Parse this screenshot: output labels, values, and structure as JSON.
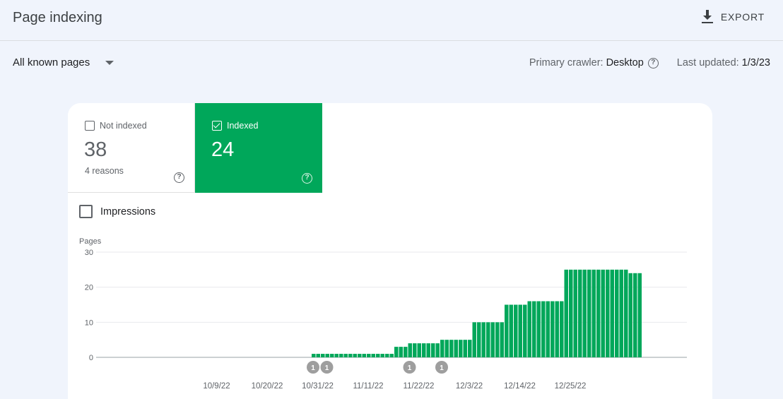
{
  "header": {
    "title": "Page indexing",
    "export_label": "EXPORT",
    "export_icon": "download-icon"
  },
  "filter": {
    "selected": "All known pages"
  },
  "meta": {
    "crawler_label": "Primary crawler:",
    "crawler_value": "Desktop",
    "updated_label": "Last updated:",
    "updated_value": "1/3/23"
  },
  "tiles": {
    "not_indexed": {
      "label": "Not indexed",
      "count": "38",
      "sub": "4 reasons"
    },
    "indexed": {
      "label": "Indexed",
      "count": "24"
    }
  },
  "impressions": {
    "label": "Impressions"
  },
  "colors": {
    "indexed": "#00a75a",
    "background": "#f0f4fc"
  },
  "chart_data": {
    "type": "bar",
    "ylabel": "Pages",
    "ylim": [
      0,
      30
    ],
    "yticks": [
      "0",
      "10",
      "20",
      "30"
    ],
    "x_start": "10/4/22",
    "x_end": "1/2/23",
    "xtick_labels": [
      {
        "label": "10/9/22",
        "index": 5
      },
      {
        "label": "10/20/22",
        "index": 16
      },
      {
        "label": "10/31/22",
        "index": 27
      },
      {
        "label": "11/11/22",
        "index": 38
      },
      {
        "label": "11/22/22",
        "index": 49
      },
      {
        "label": "12/3/22",
        "index": 60
      },
      {
        "label": "12/14/22",
        "index": 71
      },
      {
        "label": "12/25/22",
        "index": 82
      }
    ],
    "annotations": [
      {
        "label": "1",
        "index": 26
      },
      {
        "label": "1",
        "index": 29
      },
      {
        "label": "1",
        "index": 47
      },
      {
        "label": "1",
        "index": 54
      }
    ],
    "values": [
      0,
      0,
      0,
      0,
      0,
      0,
      0,
      0,
      0,
      0,
      0,
      0,
      0,
      0,
      0,
      0,
      0,
      0,
      0,
      0,
      0,
      0,
      0,
      0,
      0,
      0,
      1,
      1,
      1,
      1,
      1,
      1,
      1,
      1,
      1,
      1,
      1,
      1,
      1,
      1,
      1,
      1,
      1,
      1,
      3,
      3,
      3,
      4,
      4,
      4,
      4,
      4,
      4,
      4,
      5,
      5,
      5,
      5,
      5,
      5,
      5,
      10,
      10,
      10,
      10,
      10,
      10,
      10,
      15,
      15,
      15,
      15,
      15,
      16,
      16,
      16,
      16,
      16,
      16,
      16,
      16,
      25,
      25,
      25,
      25,
      25,
      25,
      25,
      25,
      25,
      25,
      25,
      25,
      25,
      25,
      24,
      24,
      24
    ]
  }
}
